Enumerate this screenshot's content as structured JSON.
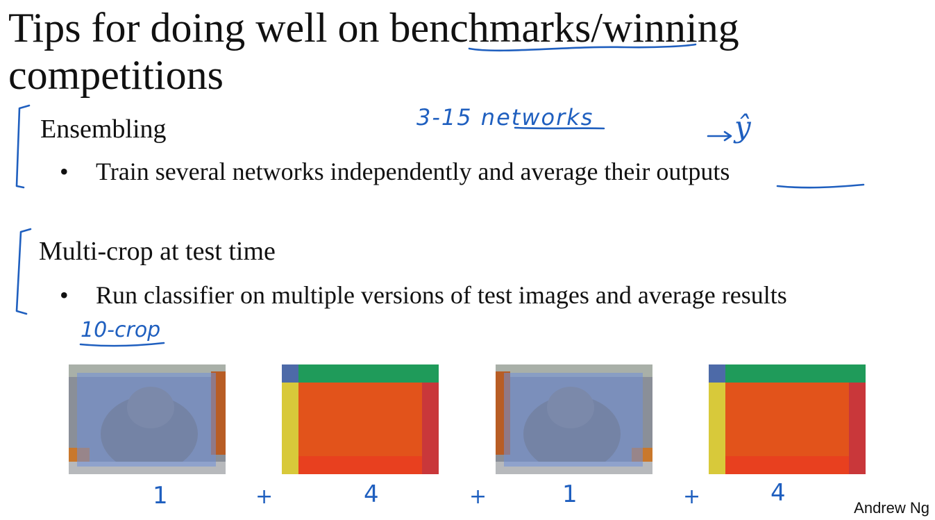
{
  "slide": {
    "title": "Tips for doing well on benchmarks/winning competitions",
    "sections": [
      {
        "heading": "Ensembling",
        "bullet": "Train several networks independently and average their outputs"
      },
      {
        "heading": "Multi-crop at test time",
        "bullet": "Run classifier on multiple versions of test images and average results"
      }
    ],
    "bullet_glyph": "•",
    "signature": "Andrew Ng"
  },
  "annotations": {
    "ensemble_note": "3-15 networks",
    "yhat": "ŷ",
    "multicrop_note": "10-crop",
    "crop_counts": [
      "1",
      "+",
      "4",
      "+",
      "1",
      "+",
      "4"
    ]
  },
  "crop_images": [
    {
      "name": "cat-center-crop",
      "overlay": "#6f8fd8"
    },
    {
      "name": "cat-corner-crops",
      "overlay": "#e2531b"
    },
    {
      "name": "cat-mirrored-center-crop",
      "overlay": "#6f8fd8"
    },
    {
      "name": "cat-mirrored-corner-crops",
      "overlay": "#e2531b"
    }
  ],
  "colors": {
    "ink": "#1f5fbf",
    "crop_blue": "#6f8fd8",
    "crop_orange": "#e2531b",
    "crop_green": "#1f9b5a",
    "crop_yellow": "#d8c93a",
    "crop_red": "#c9373a"
  }
}
